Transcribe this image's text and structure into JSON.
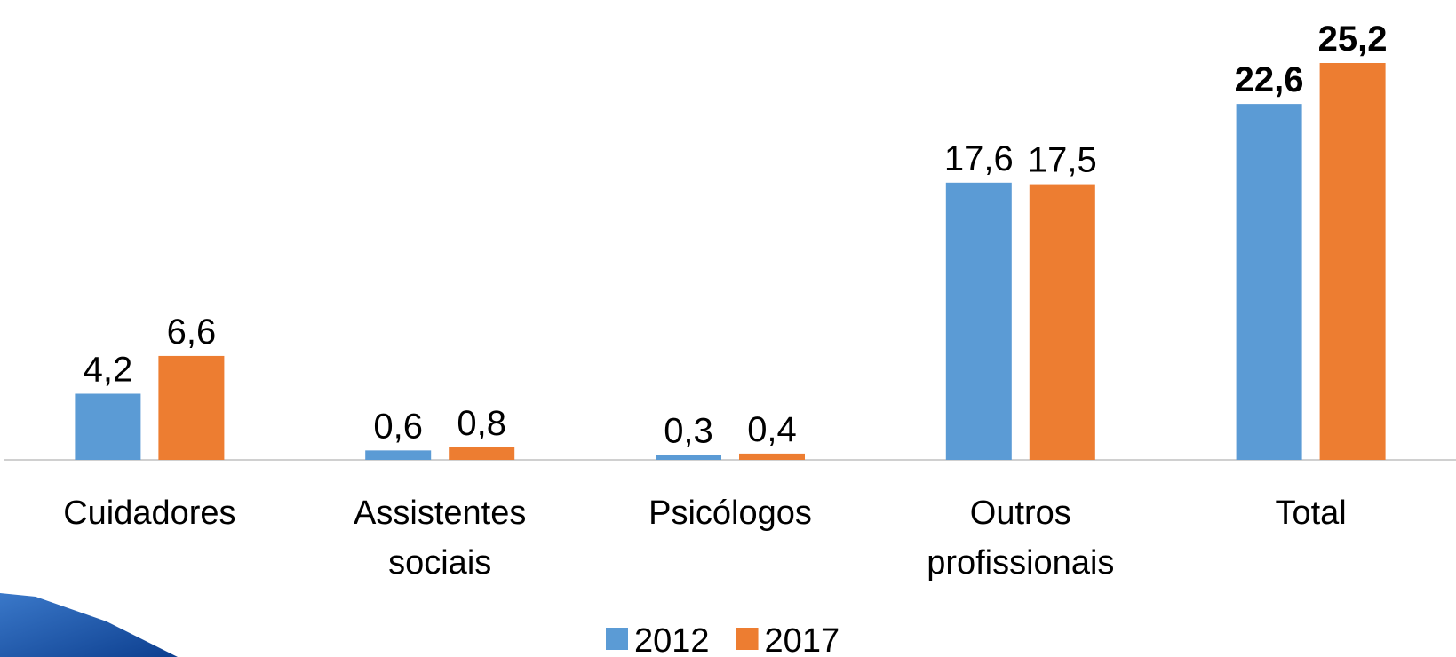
{
  "chart_data": {
    "type": "bar",
    "categories": [
      "Cuidadores",
      "Assistentes sociais",
      "Psicólogos",
      "Outros profissionais",
      "Total"
    ],
    "series": [
      {
        "name": "2012",
        "color": "#5b9bd5",
        "values": [
          4.2,
          0.6,
          0.3,
          17.6,
          22.6
        ],
        "value_labels": [
          "4,2",
          "0,6",
          "0,3",
          "17,6",
          "22,6"
        ]
      },
      {
        "name": "2017",
        "color": "#ed7d31",
        "values": [
          6.6,
          0.8,
          0.4,
          17.5,
          25.2
        ],
        "value_labels": [
          "6,6",
          "0,8",
          "0,4",
          "17,5",
          "25,2"
        ]
      }
    ],
    "legend": "bottom"
  }
}
